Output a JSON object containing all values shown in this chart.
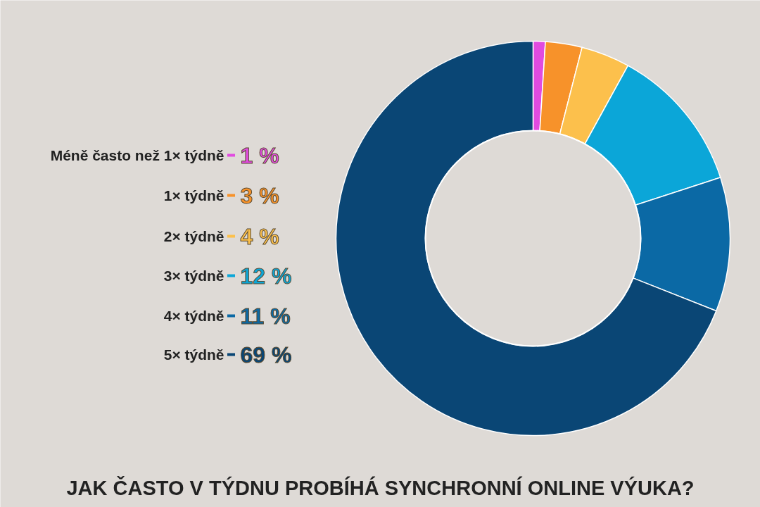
{
  "chart_data": {
    "type": "donut",
    "title": "JAK ČASTO V TÝDNU PROBÍHÁ SYNCHRONNÍ ONLINE VÝUKA?",
    "categories": [
      "Méně často než 1× týdně",
      "1× týdně",
      "2× týdně",
      "3× týdně",
      "4× týdně",
      "5× týdně"
    ],
    "values": [
      1,
      3,
      4,
      12,
      11,
      69
    ],
    "colors": [
      "#e14be0",
      "#f7922a",
      "#fcc04c",
      "#0ba6d8",
      "#0b69a5",
      "#0a4675"
    ],
    "legend": "left",
    "value_labels": [
      "1 %",
      "3 %",
      "4 %",
      "12 %",
      "11 %",
      "69 %"
    ]
  }
}
